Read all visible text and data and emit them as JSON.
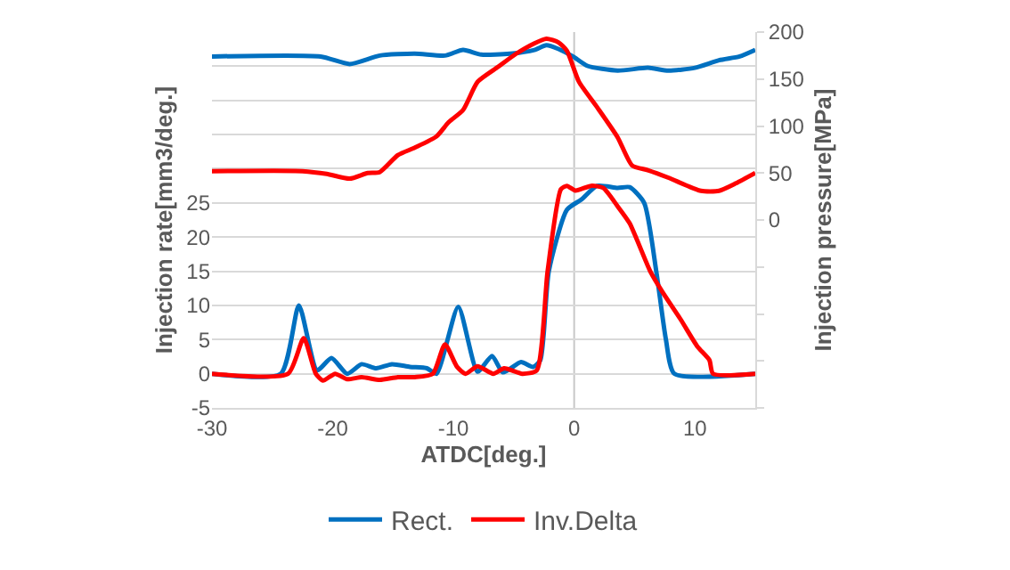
{
  "chart_data": {
    "type": "line",
    "xlabel": "ATDC[deg.]",
    "ylabel": "Injection rate[mm3/deg.]",
    "y2label": "Injection pressure[MPa]",
    "xlim": [
      -30,
      15
    ],
    "xticks": [
      -30,
      -20,
      -10,
      0,
      10
    ],
    "ylim": [
      -5,
      50
    ],
    "yticks": [
      -5,
      0,
      5,
      10,
      15,
      20,
      25,
      {
        "value": 30,
        "label": null
      },
      {
        "value": 35,
        "label": null
      },
      {
        "value": 40,
        "label": null
      },
      {
        "value": 45,
        "label": null
      },
      {
        "value": 50,
        "label": null
      }
    ],
    "y2lim": [
      -200,
      200
    ],
    "y2ticks": [
      {
        "value": -200,
        "label": null
      },
      {
        "value": -150,
        "label": null
      },
      {
        "value": -100,
        "label": null
      },
      {
        "value": -50,
        "label": null
      },
      0,
      50,
      100,
      150,
      200
    ],
    "grid": "y",
    "legend": "bottom",
    "line_style": "solid",
    "marker": "none",
    "ref_lines": [
      {
        "axis": "x",
        "value": 0,
        "color": "#c8c8c8"
      }
    ],
    "series": [
      {
        "name": "Rect.",
        "color": "#0070c0",
        "x": [
          -30,
          -24.3,
          -22.8,
          -21.3,
          -20.1,
          -18.8,
          -17.6,
          -16.4,
          -15.1,
          -13.6,
          -12.2,
          -11.4,
          -9.6,
          -8,
          -6.8,
          -5.9,
          -4.4,
          -3.4,
          -2.8,
          -2.1,
          -0.6,
          0.6,
          1.9,
          3.6,
          4.6,
          5.8,
          6.8,
          7.6,
          8.3,
          15
        ],
        "values": [
          0,
          0,
          10,
          0.5,
          2.3,
          0,
          1.4,
          0.8,
          1.4,
          1,
          0.8,
          0,
          9.8,
          0.3,
          2.6,
          0.2,
          1.7,
          1,
          2,
          15,
          24,
          25.5,
          27.5,
          27.2,
          27.3,
          25,
          15,
          5,
          0,
          0
        ]
      },
      {
        "name": "Inv.Delta",
        "color": "#ff0000",
        "x": [
          -30,
          -23.7,
          -22.4,
          -21.4,
          -20.8,
          -19.8,
          -18.8,
          -17.6,
          -16.1,
          -14.6,
          -13.2,
          -11.7,
          -10.7,
          -9.7,
          -9,
          -8,
          -6.7,
          -5.8,
          -4.3,
          -3.1,
          -2.2,
          -1.1,
          -0.6,
          0.1,
          1.4,
          2.4,
          3.6,
          4.6,
          6.3,
          7.3,
          8.8,
          10.2,
          11.2,
          11.5,
          15
        ],
        "values": [
          0,
          0,
          5.2,
          0,
          -1,
          0,
          -0.8,
          -0.5,
          -0.9,
          -0.5,
          -0.5,
          0,
          4.3,
          1,
          0,
          1.1,
          0,
          0.8,
          0,
          0.5,
          15,
          27,
          27.5,
          26.8,
          27.5,
          27.2,
          24.5,
          22,
          15,
          12,
          8,
          4,
          2,
          0,
          0
        ]
      },
      {
        "color": "#0070c0",
        "axis": "y2",
        "x": [
          -30,
          -21,
          -18.6,
          -16.1,
          -13.2,
          -10.7,
          -9.2,
          -7.7,
          -5.3,
          -3.3,
          -2.3,
          -1.3,
          -0.1,
          1.1,
          3.6,
          6.1,
          7.8,
          10,
          12,
          13.7,
          15
        ],
        "values": [
          174,
          174,
          166,
          175,
          177,
          175,
          181,
          176,
          177,
          181,
          186,
          182,
          174,
          164,
          159,
          162,
          159,
          162,
          170,
          174,
          181
        ]
      },
      {
        "color": "#ff0000",
        "axis": "y2",
        "x": [
          -30,
          -22.5,
          -20.5,
          -18.6,
          -17.1,
          -16.1,
          -14.6,
          -13.2,
          -11.4,
          -10.4,
          -9.2,
          -8,
          -6.3,
          -4.8,
          -3.3,
          -2.3,
          -1.3,
          -0.6,
          0.4,
          1.9,
          3.6,
          4.8,
          6.1,
          7.8,
          10.5,
          12,
          13.4,
          15
        ],
        "values": [
          52,
          52,
          49,
          44,
          50,
          51,
          69,
          77,
          89,
          104,
          117,
          147,
          163,
          177,
          188,
          193,
          189,
          180,
          147,
          120,
          88,
          58,
          53,
          45,
          31,
          31,
          39,
          50
        ]
      }
    ]
  }
}
